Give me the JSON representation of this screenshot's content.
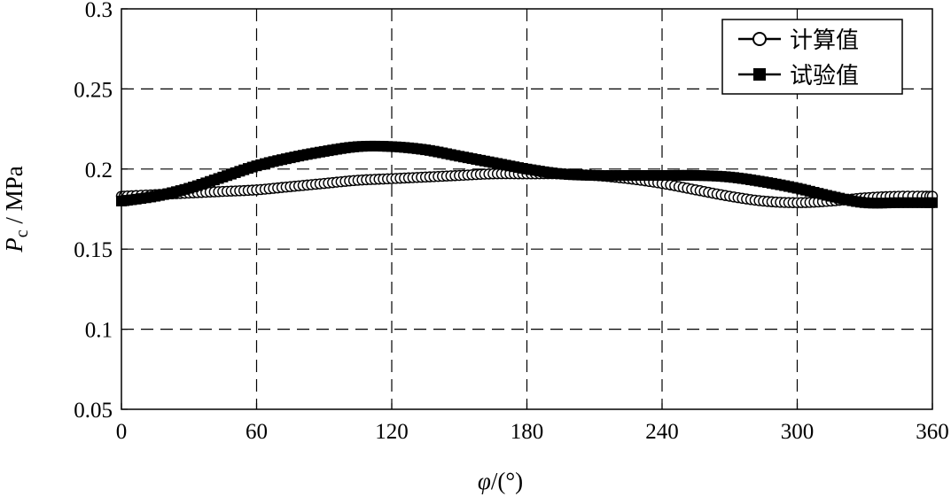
{
  "chart_data": {
    "type": "line",
    "title": "",
    "xlabel_symbol": "φ",
    "xlabel_unit": "/(°)",
    "ylabel_symbol": "P",
    "ylabel_sub": "c",
    "ylabel_unit": " / MPa",
    "xlim": [
      0,
      360
    ],
    "ylim": [
      0.05,
      0.3
    ],
    "xticks": [
      0,
      60,
      120,
      180,
      240,
      300,
      360
    ],
    "xtick_labels": [
      "0",
      "60",
      "120",
      "180",
      "240",
      "300",
      "360"
    ],
    "yticks": [
      0.05,
      0.1,
      0.15,
      0.2,
      0.25,
      0.3
    ],
    "ytick_labels": [
      "0.05",
      "0.1",
      "0.15",
      "0.2",
      "0.25",
      "0.3"
    ],
    "grid": true,
    "legend_position": "top-right",
    "series": [
      {
        "name": "计算值",
        "marker": "open-circle",
        "x": [
          0,
          15,
          30,
          45,
          60,
          75,
          90,
          105,
          120,
          135,
          150,
          165,
          180,
          195,
          210,
          225,
          240,
          255,
          270,
          285,
          300,
          315,
          330,
          345,
          360
        ],
        "y": [
          0.183,
          0.184,
          0.185,
          0.186,
          0.187,
          0.189,
          0.191,
          0.193,
          0.194,
          0.195,
          0.196,
          0.197,
          0.197,
          0.197,
          0.196,
          0.194,
          0.191,
          0.187,
          0.183,
          0.18,
          0.179,
          0.18,
          0.182,
          0.183,
          0.183
        ]
      },
      {
        "name": "试验值",
        "marker": "filled-square",
        "x": [
          0,
          15,
          30,
          45,
          60,
          75,
          90,
          105,
          120,
          135,
          150,
          165,
          180,
          195,
          210,
          225,
          240,
          255,
          270,
          285,
          300,
          315,
          330,
          345,
          360
        ],
        "y": [
          0.18,
          0.183,
          0.188,
          0.195,
          0.202,
          0.207,
          0.211,
          0.214,
          0.214,
          0.212,
          0.208,
          0.204,
          0.2,
          0.197,
          0.196,
          0.196,
          0.196,
          0.196,
          0.195,
          0.192,
          0.188,
          0.183,
          0.179,
          0.179,
          0.179
        ]
      }
    ]
  }
}
